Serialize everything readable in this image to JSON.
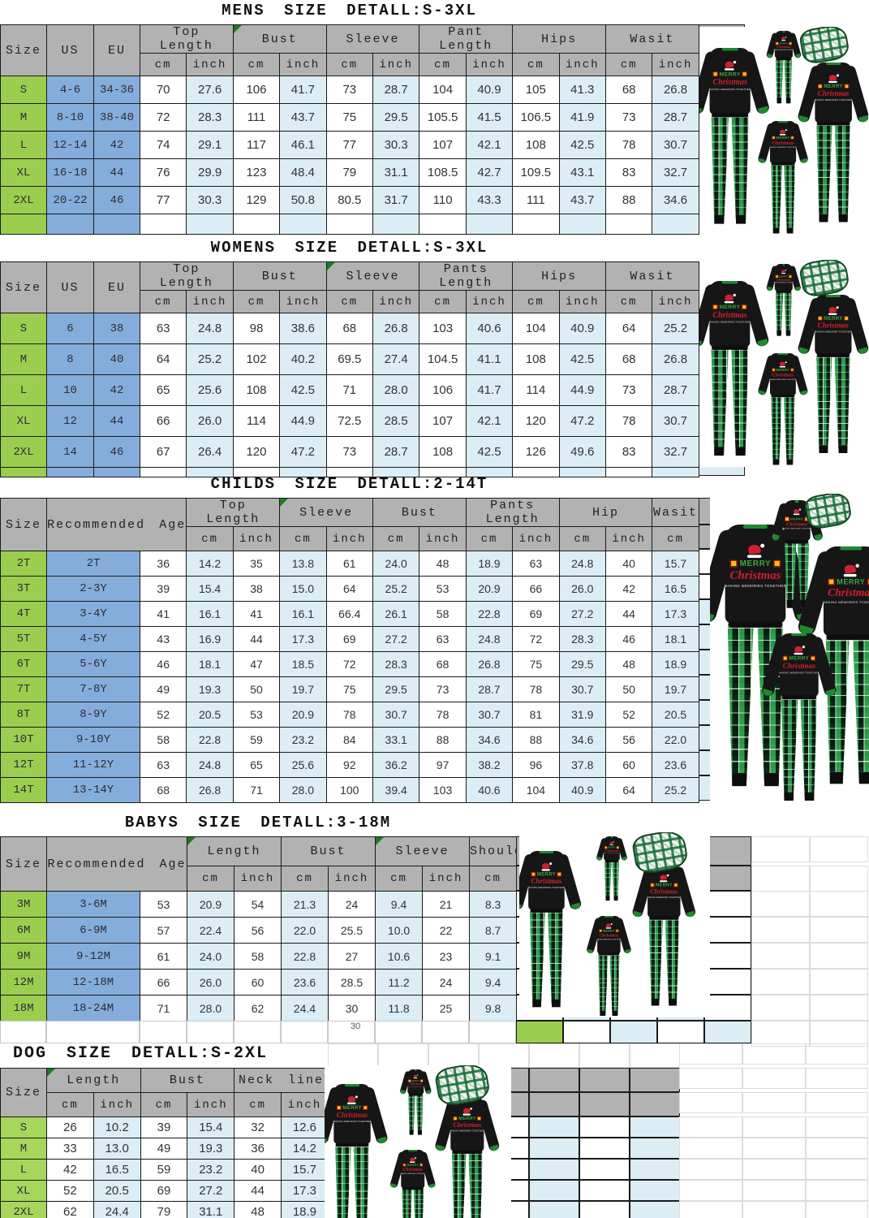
{
  "palette": {
    "size_green": "#9BCE4F",
    "dog_size_green": "#A7D65C",
    "ref_blue": "#85ADDB",
    "inch_blue": "#DCEDF5",
    "header_gray": "#B2B2B2",
    "pajama_black": "#161616",
    "cuff_green": "#1E8A31",
    "plaid_green": "#2FA050",
    "print_red": "#CF2030",
    "print_green": "#3DA63D",
    "gift_yellow": "#F2C21C"
  },
  "chest_print": {
    "merry": "MERRY",
    "christmas": "Christmas",
    "tagline": "MAKING MEMORIES TOGETHER"
  },
  "stray_text": "30",
  "chart_data": [
    {
      "type": "table",
      "key": "mens",
      "title": "MENS SIZE DETALL:S-3XL",
      "left_headers": [
        "Size",
        "US",
        "EU"
      ],
      "col_groups": [
        "Top Length",
        "Bust",
        "Sleeve",
        "Pant Length",
        "Hips",
        "Wasit"
      ],
      "sub_headers": [
        "cm",
        "inch"
      ],
      "rows": [
        [
          "S",
          "4-6",
          "34-36",
          "70",
          "27.6",
          "106",
          "41.7",
          "73",
          "28.7",
          "104",
          "40.9",
          "105",
          "41.3",
          "68",
          "26.8"
        ],
        [
          "M",
          "8-10",
          "38-40",
          "72",
          "28.3",
          "111",
          "43.7",
          "75",
          "29.5",
          "105.5",
          "41.5",
          "106.5",
          "41.9",
          "73",
          "28.7"
        ],
        [
          "L",
          "12-14",
          "42",
          "74",
          "29.1",
          "117",
          "46.1",
          "77",
          "30.3",
          "107",
          "42.1",
          "108",
          "42.5",
          "78",
          "30.7"
        ],
        [
          "XL",
          "16-18",
          "44",
          "76",
          "29.9",
          "123",
          "48.4",
          "79",
          "31.1",
          "108.5",
          "42.7",
          "109.5",
          "43.1",
          "83",
          "32.7"
        ],
        [
          "2XL",
          "20-22",
          "46",
          "77",
          "30.3",
          "129",
          "50.8",
          "80.5",
          "31.7",
          "110",
          "43.3",
          "111",
          "43.7",
          "88",
          "34.6"
        ]
      ]
    },
    {
      "type": "table",
      "key": "womens",
      "title": "WOMENS SIZE DETALL:S-3XL",
      "left_headers": [
        "Size",
        "US",
        "EU"
      ],
      "col_groups": [
        "Top Length",
        "Bust",
        "Sleeve",
        "Pants Length",
        "Hips",
        "Wasit"
      ],
      "sub_headers": [
        "cm",
        "inch"
      ],
      "rows": [
        [
          "S",
          "6",
          "38",
          "63",
          "24.8",
          "98",
          "38.6",
          "68",
          "26.8",
          "103",
          "40.6",
          "104",
          "40.9",
          "64",
          "25.2"
        ],
        [
          "M",
          "8",
          "40",
          "64",
          "25.2",
          "102",
          "40.2",
          "69.5",
          "27.4",
          "104.5",
          "41.1",
          "108",
          "42.5",
          "68",
          "26.8"
        ],
        [
          "L",
          "10",
          "42",
          "65",
          "25.6",
          "108",
          "42.5",
          "71",
          "28.0",
          "106",
          "41.7",
          "114",
          "44.9",
          "73",
          "28.7"
        ],
        [
          "XL",
          "12",
          "44",
          "66",
          "26.0",
          "114",
          "44.9",
          "72.5",
          "28.5",
          "107",
          "42.1",
          "120",
          "47.2",
          "78",
          "30.7"
        ],
        [
          "2XL",
          "14",
          "46",
          "67",
          "26.4",
          "120",
          "47.2",
          "73",
          "28.7",
          "108",
          "42.5",
          "126",
          "49.6",
          "83",
          "32.7"
        ]
      ]
    },
    {
      "type": "table",
      "key": "childs",
      "title": "CHILDS SIZE DETALL:2-14T",
      "left_headers": [
        "Size",
        "Recommended Age"
      ],
      "col_groups": [
        "Top Length",
        "Sleeve",
        "Bust",
        "Pants Length",
        "Hip",
        "Wasit"
      ],
      "sub_headers": [
        "cm",
        "inch"
      ],
      "rows": [
        [
          "2T",
          "2T",
          "36",
          "14.2",
          "35",
          "13.8",
          "61",
          "24.0",
          "48",
          "18.9",
          "63",
          "24.8",
          "40",
          "15.7"
        ],
        [
          "3T",
          "2-3Y",
          "39",
          "15.4",
          "38",
          "15.0",
          "64",
          "25.2",
          "53",
          "20.9",
          "66",
          "26.0",
          "42",
          "16.5"
        ],
        [
          "4T",
          "3-4Y",
          "41",
          "16.1",
          "41",
          "16.1",
          "66.4",
          "26.1",
          "58",
          "22.8",
          "69",
          "27.2",
          "44",
          "17.3"
        ],
        [
          "5T",
          "4-5Y",
          "43",
          "16.9",
          "44",
          "17.3",
          "69",
          "27.2",
          "63",
          "24.8",
          "72",
          "28.3",
          "46",
          "18.1"
        ],
        [
          "6T",
          "5-6Y",
          "46",
          "18.1",
          "47",
          "18.5",
          "72",
          "28.3",
          "68",
          "26.8",
          "75",
          "29.5",
          "48",
          "18.9"
        ],
        [
          "7T",
          "7-8Y",
          "49",
          "19.3",
          "50",
          "19.7",
          "75",
          "29.5",
          "73",
          "28.7",
          "78",
          "30.7",
          "50",
          "19.7"
        ],
        [
          "8T",
          "8-9Y",
          "52",
          "20.5",
          "53",
          "20.9",
          "78",
          "30.7",
          "78",
          "30.7",
          "81",
          "31.9",
          "52",
          "20.5"
        ],
        [
          "10T",
          "9-10Y",
          "58",
          "22.8",
          "59",
          "23.2",
          "84",
          "33.1",
          "88",
          "34.6",
          "88",
          "34.6",
          "56",
          "22.0"
        ],
        [
          "12T",
          "11-12Y",
          "63",
          "24.8",
          "65",
          "25.6",
          "92",
          "36.2",
          "97",
          "38.2",
          "96",
          "37.8",
          "60",
          "23.6"
        ],
        [
          "14T",
          "13-14Y",
          "68",
          "26.8",
          "71",
          "28.0",
          "100",
          "39.4",
          "103",
          "40.6",
          "104",
          "40.9",
          "64",
          "25.2"
        ]
      ]
    },
    {
      "type": "table",
      "key": "babys",
      "title": "BABYS SIZE DETALL:3-18M",
      "left_headers": [
        "Size",
        "Recommended Age"
      ],
      "col_groups": [
        "Length",
        "Bust",
        "Sleeve",
        "Shoulder"
      ],
      "sub_headers": [
        "cm",
        "inch"
      ],
      "rows": [
        [
          "3M",
          "3-6M",
          "53",
          "20.9",
          "54",
          "21.3",
          "24",
          "9.4",
          "21",
          "8.3"
        ],
        [
          "6M",
          "6-9M",
          "57",
          "22.4",
          "56",
          "22.0",
          "25.5",
          "10.0",
          "22",
          "8.7"
        ],
        [
          "9M",
          "9-12M",
          "61",
          "24.0",
          "58",
          "22.8",
          "27",
          "10.6",
          "23",
          "9.1"
        ],
        [
          "12M",
          "12-18M",
          "66",
          "26.0",
          "60",
          "23.6",
          "28.5",
          "11.2",
          "24",
          "9.4"
        ],
        [
          "18M",
          "18-24M",
          "71",
          "28.0",
          "62",
          "24.4",
          "30",
          "11.8",
          "25",
          "9.8"
        ]
      ]
    },
    {
      "type": "table",
      "key": "dog",
      "title": "DOG SIZE DETALL:S-2XL",
      "left_headers": [
        "Size"
      ],
      "col_groups": [
        "Length",
        "Bust",
        "Neck line"
      ],
      "sub_headers": [
        "cm",
        "inch"
      ],
      "rows": [
        [
          "S",
          "26",
          "10.2",
          "39",
          "15.4",
          "32",
          "12.6"
        ],
        [
          "M",
          "33",
          "13.0",
          "49",
          "19.3",
          "36",
          "14.2"
        ],
        [
          "L",
          "42",
          "16.5",
          "59",
          "23.2",
          "40",
          "15.7"
        ],
        [
          "XL",
          "52",
          "20.5",
          "69",
          "27.2",
          "44",
          "17.3"
        ],
        [
          "2XL",
          "62",
          "24.4",
          "79",
          "31.1",
          "48",
          "18.9"
        ]
      ]
    }
  ]
}
